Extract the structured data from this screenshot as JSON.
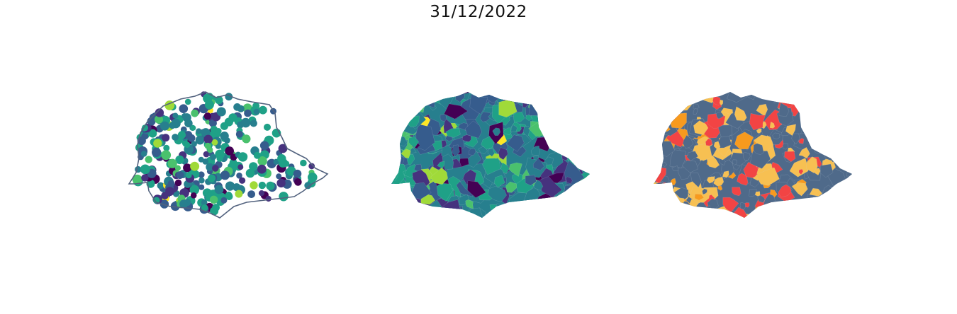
{
  "figure": {
    "title": "31/12/2022"
  },
  "colors": {
    "viridis": [
      "#440154",
      "#46327e",
      "#365c8d",
      "#277f8e",
      "#1fa187",
      "#4ac16d",
      "#a0da39",
      "#fde725"
    ],
    "categories": {
      "base": "#4f6a8a",
      "light_orange": "#f7c052",
      "orange": "#f79a1e",
      "red": "#f24444"
    },
    "outline": "#52627e"
  },
  "panels": [
    {
      "name": "points-map",
      "style": "bubbles on state outline",
      "palette": "viridis"
    },
    {
      "name": "choropleth-map",
      "style": "filled municipalities",
      "palette": "viridis"
    },
    {
      "name": "category-map",
      "style": "filled municipalities",
      "palette": "categories"
    }
  ]
}
